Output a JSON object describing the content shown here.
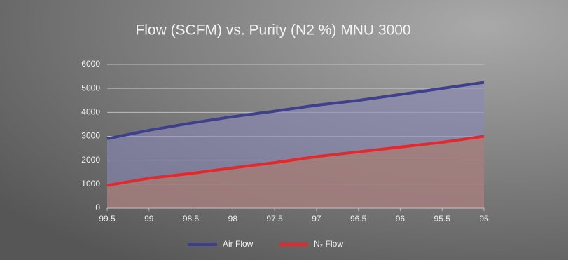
{
  "chart_data": {
    "type": "area",
    "title": "Flow (SCFM) vs. Purity (N2 %) MNU 3000",
    "x": [
      99.5,
      99,
      98.5,
      98,
      97.5,
      97,
      96.5,
      96,
      95.5,
      95
    ],
    "xlim": [
      99.5,
      95
    ],
    "xticks": [
      99.5,
      99,
      98.5,
      98,
      97.5,
      97,
      96.5,
      96,
      95.5,
      95
    ],
    "ylim": [
      0,
      6000
    ],
    "yticks": [
      0,
      1000,
      2000,
      3000,
      4000,
      5000,
      6000
    ],
    "grid": true,
    "legend": "bottom",
    "series": [
      {
        "name": "Air Flow",
        "color": "#3f3f8e",
        "fill": "#8a88b8",
        "values": [
          2900,
          3250,
          3550,
          3820,
          4050,
          4300,
          4500,
          4750,
          5000,
          5250
        ]
      },
      {
        "name": "N₂ Flow",
        "color": "#e3282e",
        "fill": "#b07a68",
        "values": [
          950,
          1250,
          1450,
          1680,
          1900,
          2150,
          2350,
          2550,
          2750,
          3000
        ]
      }
    ]
  }
}
